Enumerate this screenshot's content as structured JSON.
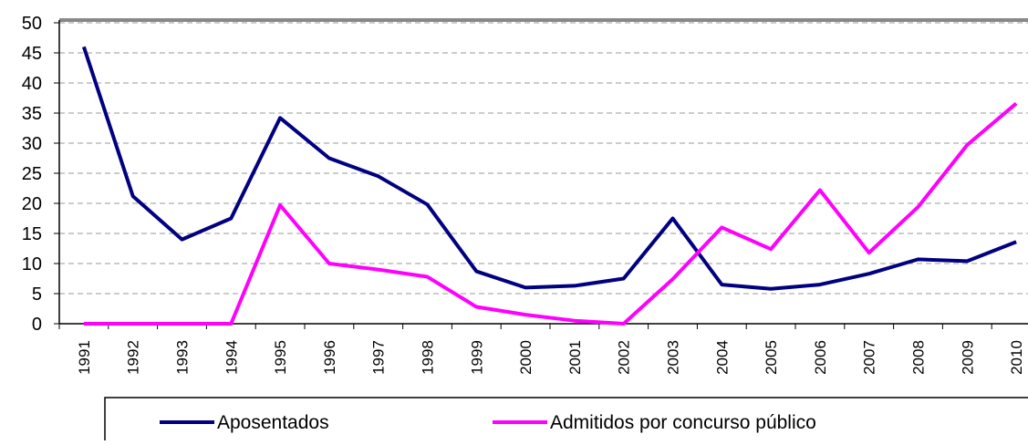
{
  "chart_data": {
    "type": "line",
    "categories": [
      "1991",
      "1992",
      "1993",
      "1994",
      "1995",
      "1996",
      "1997",
      "1998",
      "1999",
      "2000",
      "2001",
      "2002",
      "2003",
      "2004",
      "2005",
      "2006",
      "2007",
      "2008",
      "2009",
      "2010"
    ],
    "series": [
      {
        "name": "Aposentados",
        "color": "#000080",
        "values": [
          46,
          21.2,
          14,
          17.5,
          34.2,
          27.5,
          24.5,
          19.8,
          8.7,
          6,
          6.3,
          7.5,
          17.5,
          6.5,
          5.8,
          6.5,
          8.3,
          10.7,
          10.4,
          13.6
        ]
      },
      {
        "name": "Admitidos por concurso público",
        "color": "#ff00ff",
        "values": [
          0,
          0,
          0,
          0,
          19.7,
          10,
          9,
          7.8,
          2.8,
          1.5,
          0.5,
          0,
          7.4,
          16,
          12.4,
          22.2,
          11.8,
          19.4,
          29.7,
          36.6
        ]
      }
    ],
    "ylim": [
      0,
      50
    ],
    "yticks": [
      0,
      5,
      10,
      15,
      20,
      25,
      30,
      35,
      40,
      45,
      50
    ],
    "grid": true
  }
}
